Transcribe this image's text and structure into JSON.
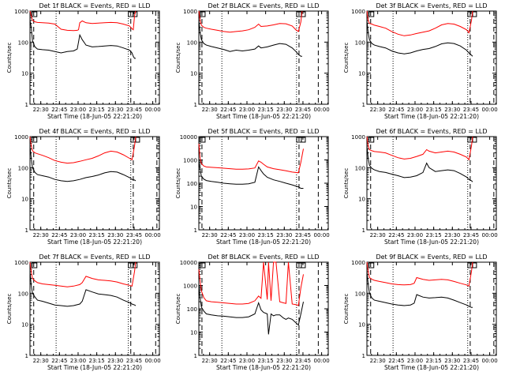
{
  "colors": {
    "events": "#000000",
    "lld": "#ff0000",
    "axis": "#000000",
    "background": "#ffffff"
  },
  "shared": {
    "xlabel": "Start Time (18-Jun-05 22:21:20)",
    "ylabel": "Counts/sec",
    "x_tick_labels": [
      "22:30",
      "22:45",
      "23:00",
      "23:15",
      "23:30",
      "23:45",
      "00:00"
    ],
    "x_tick_minutes": [
      8.67,
      23.67,
      38.67,
      53.67,
      68.67,
      83.67,
      98.67
    ],
    "x_range_minutes": [
      0,
      104
    ],
    "log_scale_y": true
  },
  "chart_data": [
    {
      "type": "line",
      "title": "Det 1f BLACK = Events, RED = LLD",
      "ylim": [
        1,
        1000
      ],
      "y_tick_labels": [
        "1",
        "10",
        "100",
        "1000"
      ],
      "x_minutes": [
        0,
        1,
        2,
        4,
        6,
        10,
        15,
        20,
        25,
        30,
        35,
        38,
        39,
        40,
        42,
        45,
        50,
        55,
        60,
        65,
        70,
        75,
        80,
        82,
        83,
        84,
        85
      ],
      "series": [
        {
          "values": [
            500,
            300,
            110,
            70,
            60,
            57,
            55,
            50,
            45,
            50,
            52,
            60,
            100,
            170,
            120,
            80,
            70,
            72,
            75,
            78,
            75,
            65,
            55,
            45,
            35,
            30,
            30
          ]
        },
        {
          "values": [
            1000,
            700,
            500,
            450,
            430,
            420,
            410,
            380,
            260,
            240,
            235,
            240,
            250,
            420,
            480,
            420,
            400,
            410,
            420,
            430,
            420,
            380,
            330,
            270,
            250,
            700,
            1000
          ]
        }
      ],
      "dashed_markers_minutes": [
        3,
        81,
        101
      ],
      "dotted_markers_minutes": [
        21,
        79
      ]
    },
    {
      "type": "line",
      "title": "Det 2f BLACK = Events, RED = LLD",
      "ylim": [
        1,
        1000
      ],
      "y_tick_labels": [
        "1",
        "10",
        "100",
        "1000"
      ],
      "x_minutes": [
        0,
        1,
        2,
        4,
        6,
        10,
        15,
        20,
        25,
        30,
        35,
        40,
        45,
        48,
        50,
        55,
        60,
        65,
        70,
        75,
        78,
        80,
        82,
        83
      ],
      "series": [
        {
          "values": [
            500,
            200,
            120,
            90,
            80,
            72,
            65,
            58,
            50,
            55,
            52,
            55,
            60,
            75,
            65,
            70,
            80,
            90,
            85,
            65,
            50,
            40,
            35,
            35
          ]
        },
        {
          "values": [
            1000,
            500,
            350,
            300,
            280,
            260,
            240,
            220,
            210,
            220,
            230,
            250,
            300,
            380,
            320,
            330,
            360,
            400,
            390,
            330,
            250,
            220,
            450,
            1000
          ]
        }
      ],
      "dashed_markers_minutes": [
        2.5,
        80.5,
        96
      ],
      "dotted_markers_minutes": [
        18.5,
        78.5
      ]
    },
    {
      "type": "line",
      "title": "Det 3f BLACK = Events, RED = LLD",
      "ylim": [
        1,
        1000
      ],
      "y_tick_labels": [
        "1",
        "10",
        "100",
        "1000"
      ],
      "x_minutes": [
        0,
        1,
        2,
        4,
        6,
        10,
        15,
        20,
        25,
        30,
        35,
        40,
        45,
        50,
        55,
        60,
        65,
        70,
        75,
        80,
        82,
        84,
        85
      ],
      "series": [
        {
          "values": [
            500,
            200,
            120,
            90,
            80,
            72,
            65,
            52,
            45,
            42,
            45,
            52,
            58,
            62,
            72,
            88,
            95,
            90,
            75,
            55,
            45,
            38,
            35
          ]
        },
        {
          "values": [
            1000,
            500,
            400,
            380,
            350,
            320,
            280,
            220,
            180,
            160,
            170,
            190,
            210,
            230,
            280,
            360,
            400,
            380,
            320,
            250,
            200,
            500,
            1000
          ]
        }
      ],
      "dashed_markers_minutes": [
        3,
        83,
        102
      ],
      "dotted_markers_minutes": [
        21,
        81
      ]
    },
    {
      "type": "line",
      "title": "Det 4f BLACK = Events, RED = LLD",
      "ylim": [
        1,
        1000
      ],
      "y_tick_labels": [
        "1",
        "10",
        "100",
        "1000"
      ],
      "x_minutes": [
        0,
        1,
        2,
        4,
        6,
        10,
        15,
        20,
        25,
        30,
        35,
        40,
        45,
        50,
        55,
        60,
        65,
        70,
        75,
        80,
        82,
        84,
        85
      ],
      "series": [
        {
          "values": [
            500,
            200,
            100,
            70,
            60,
            55,
            50,
            42,
            38,
            36,
            38,
            42,
            48,
            52,
            58,
            68,
            75,
            72,
            60,
            48,
            42,
            40,
            38
          ]
        },
        {
          "values": [
            1000,
            500,
            350,
            300,
            280,
            250,
            210,
            170,
            150,
            140,
            145,
            160,
            180,
            200,
            240,
            300,
            340,
            320,
            260,
            200,
            180,
            500,
            1000
          ]
        }
      ],
      "dashed_markers_minutes": [
        3,
        83,
        102
      ],
      "dotted_markers_minutes": [
        21,
        81
      ]
    },
    {
      "type": "line",
      "title": "Det 5f BLACK = Events, RED = LLD",
      "ylim": [
        1,
        10000
      ],
      "y_tick_labels": [
        "1",
        "10",
        "100",
        "1000",
        "10000"
      ],
      "x_minutes": [
        0,
        1,
        2,
        4,
        6,
        10,
        15,
        20,
        25,
        30,
        35,
        40,
        45,
        48,
        50,
        52,
        55,
        60,
        65,
        70,
        75,
        80,
        82,
        84
      ],
      "series": [
        {
          "values": [
            800,
            400,
            200,
            150,
            130,
            120,
            110,
            100,
            95,
            90,
            90,
            95,
            110,
            500,
            350,
            250,
            180,
            140,
            120,
            100,
            85,
            70,
            60,
            60
          ]
        },
        {
          "values": [
            5000,
            1200,
            700,
            550,
            500,
            480,
            460,
            440,
            420,
            400,
            400,
            410,
            450,
            900,
            800,
            650,
            500,
            420,
            380,
            340,
            300,
            280,
            800,
            3000
          ]
        }
      ],
      "dashed_markers_minutes": [
        2.5,
        80.5,
        96
      ],
      "dotted_markers_minutes": [
        18.5,
        78.5
      ]
    },
    {
      "type": "line",
      "title": "Det 6f BLACK = Events, RED = LLD",
      "ylim": [
        1,
        1000
      ],
      "y_tick_labels": [
        "1",
        "10",
        "100",
        "1000"
      ],
      "x_minutes": [
        0,
        1,
        2,
        4,
        6,
        10,
        15,
        20,
        25,
        30,
        35,
        40,
        45,
        48,
        50,
        55,
        60,
        65,
        70,
        75,
        80,
        82,
        84,
        85
      ],
      "series": [
        {
          "values": [
            500,
            200,
            120,
            95,
            85,
            75,
            70,
            62,
            55,
            48,
            50,
            55,
            70,
            140,
            100,
            75,
            80,
            85,
            80,
            65,
            50,
            42,
            38,
            35
          ]
        },
        {
          "values": [
            1000,
            500,
            380,
            350,
            330,
            320,
            300,
            250,
            210,
            190,
            200,
            230,
            270,
            380,
            340,
            300,
            320,
            340,
            320,
            270,
            220,
            180,
            500,
            1000
          ]
        }
      ],
      "dashed_markers_minutes": [
        3,
        83,
        102
      ],
      "dotted_markers_minutes": [
        21,
        81
      ]
    },
    {
      "type": "line",
      "title": "Det 7f BLACK = Events, RED = LLD",
      "ylim": [
        1,
        1000
      ],
      "y_tick_labels": [
        "1",
        "10",
        "100",
        "1000"
      ],
      "x_minutes": [
        0,
        1,
        2,
        4,
        6,
        10,
        15,
        20,
        25,
        30,
        35,
        40,
        42,
        45,
        50,
        55,
        60,
        65,
        70,
        75,
        80,
        82,
        84,
        85
      ],
      "series": [
        {
          "values": [
            500,
            180,
            100,
            75,
            60,
            55,
            48,
            42,
            40,
            38,
            40,
            45,
            55,
            130,
            110,
            95,
            90,
            85,
            75,
            60,
            50,
            45,
            42,
            40
          ]
        },
        {
          "values": [
            1000,
            500,
            300,
            250,
            220,
            200,
            190,
            180,
            170,
            160,
            170,
            190,
            220,
            350,
            300,
            270,
            260,
            250,
            230,
            200,
            180,
            170,
            500,
            1000
          ]
        }
      ],
      "dashed_markers_minutes": [
        3,
        81,
        101
      ],
      "dotted_markers_minutes": [
        21,
        79
      ]
    },
    {
      "type": "line",
      "title": "Det 8f BLACK = Events, RED = LLD",
      "ylim": [
        1,
        10000
      ],
      "y_tick_labels": [
        "1",
        "10",
        "100",
        "1000",
        "10000"
      ],
      "x_minutes": [
        0,
        1,
        2,
        4,
        6,
        10,
        15,
        20,
        25,
        30,
        35,
        40,
        45,
        48,
        50,
        52,
        55,
        56,
        58,
        60,
        62,
        65,
        68,
        70,
        72,
        75,
        78,
        80,
        82,
        84
      ],
      "series": [
        {
          "values": [
            800,
            300,
            120,
            80,
            60,
            55,
            50,
            48,
            45,
            42,
            42,
            45,
            60,
            180,
            90,
            70,
            60,
            8,
            60,
            50,
            55,
            55,
            40,
            35,
            40,
            35,
            25,
            20,
            60,
            200
          ]
        },
        {
          "values": [
            5000,
            1500,
            600,
            300,
            220,
            200,
            190,
            180,
            170,
            160,
            160,
            170,
            220,
            350,
            280,
            10000,
            250,
            10000,
            220,
            10000,
            10000,
            200,
            180,
            170,
            10000,
            160,
            150,
            140,
            800,
            3000
          ]
        }
      ],
      "dashed_markers_minutes": [
        2.5,
        80.5,
        96
      ],
      "dotted_markers_minutes": [
        18.5,
        78.5
      ]
    },
    {
      "type": "line",
      "title": "Det 9f BLACK = Events, RED = LLD",
      "ylim": [
        1,
        1000
      ],
      "y_tick_labels": [
        "1",
        "10",
        "100",
        "1000"
      ],
      "x_minutes": [
        0,
        1,
        2,
        4,
        6,
        10,
        15,
        20,
        25,
        30,
        35,
        38,
        40,
        45,
        50,
        55,
        60,
        65,
        70,
        75,
        80,
        82,
        84,
        85
      ],
      "series": [
        {
          "values": [
            500,
            200,
            100,
            70,
            60,
            55,
            50,
            45,
            42,
            40,
            42,
            48,
            90,
            75,
            70,
            72,
            75,
            70,
            60,
            50,
            42,
            38,
            35,
            35
          ]
        },
        {
          "values": [
            1000,
            500,
            320,
            280,
            260,
            240,
            220,
            200,
            190,
            185,
            190,
            210,
            320,
            280,
            260,
            270,
            280,
            270,
            240,
            210,
            185,
            170,
            500,
            1000
          ]
        }
      ],
      "dashed_markers_minutes": [
        3,
        83,
        102
      ],
      "dotted_markers_minutes": [
        21,
        81
      ]
    }
  ]
}
